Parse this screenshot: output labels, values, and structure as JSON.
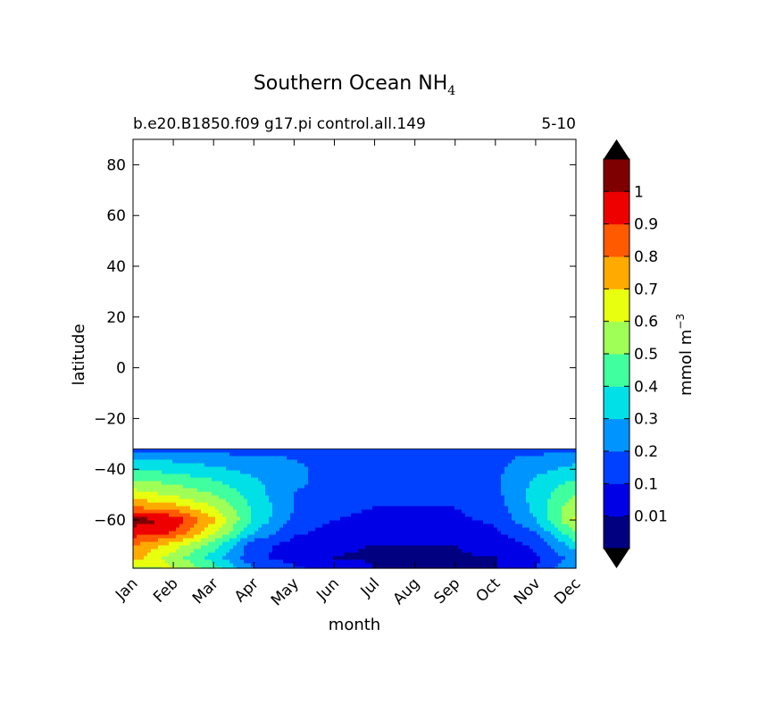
{
  "chart_data": {
    "type": "contour",
    "title": "Southern Ocean NH",
    "title_subscript": "4",
    "subtitle_left": "b.e20.B1850.f09 g17.pi control.all.149",
    "subtitle_right": "5-10",
    "xlabel": "month",
    "ylabel": "latitude",
    "x_ticks": [
      "Jan",
      "Feb",
      "Mar",
      "Apr",
      "May",
      "Jun",
      "Jul",
      "Aug",
      "Sep",
      "Oct",
      "Nov",
      "Dec"
    ],
    "y_ticks": [
      80,
      60,
      40,
      20,
      0,
      -20,
      -40,
      -60
    ],
    "ylim": [
      -79,
      90
    ],
    "data_lat_range": [
      -79,
      -32
    ],
    "colorbar": {
      "label": "mmol m",
      "label_superscript": "−3",
      "levels": [
        0.01,
        0.1,
        0.2,
        0.3,
        0.4,
        0.5,
        0.6,
        0.7,
        0.8,
        0.9,
        1
      ],
      "level_labels": [
        "0.01",
        "0.1",
        "0.2",
        "0.3",
        "0.4",
        "0.5",
        "0.6",
        "0.7",
        "0.8",
        "0.9",
        "1"
      ],
      "colors": [
        "#000080",
        "#0000e6",
        "#0040ff",
        "#0094ff",
        "#00e0e6",
        "#40ff9f",
        "#a0ff56",
        "#e8ff10",
        "#ffaa00",
        "#ff5a00",
        "#ee0000",
        "#7f0000"
      ],
      "extend": "both",
      "extend_color": "#000000"
    },
    "field_description": {
      "lat_grid": [
        -79,
        -75,
        -70,
        -65,
        -60,
        -55,
        -50,
        -45,
        -40,
        -35,
        -32
      ],
      "month_index": [
        0,
        1,
        2,
        3,
        4,
        5,
        6,
        7,
        8,
        9,
        10,
        11
      ],
      "values": [
        [
          0.55,
          0.62,
          0.45,
          0.2,
          0.12,
          0.06,
          0.008,
          0.008,
          0.008,
          0.008,
          0.1,
          0.3
        ],
        [
          0.75,
          0.55,
          0.35,
          0.12,
          0.06,
          0.008,
          0.005,
          0.005,
          0.005,
          0.005,
          0.08,
          0.25
        ],
        [
          0.8,
          0.65,
          0.45,
          0.14,
          0.06,
          0.02,
          0.008,
          0.008,
          0.008,
          0.04,
          0.12,
          0.35
        ],
        [
          0.95,
          0.9,
          0.62,
          0.3,
          0.12,
          0.06,
          0.04,
          0.03,
          0.04,
          0.08,
          0.2,
          0.5
        ],
        [
          1.05,
          0.98,
          0.72,
          0.38,
          0.18,
          0.1,
          0.08,
          0.08,
          0.08,
          0.12,
          0.3,
          0.62
        ],
        [
          0.8,
          0.75,
          0.6,
          0.38,
          0.2,
          0.12,
          0.1,
          0.1,
          0.1,
          0.15,
          0.33,
          0.58
        ],
        [
          0.65,
          0.58,
          0.5,
          0.35,
          0.2,
          0.14,
          0.12,
          0.12,
          0.12,
          0.17,
          0.34,
          0.5
        ],
        [
          0.52,
          0.48,
          0.42,
          0.32,
          0.22,
          0.16,
          0.14,
          0.14,
          0.14,
          0.18,
          0.32,
          0.42
        ],
        [
          0.4,
          0.36,
          0.32,
          0.26,
          0.22,
          0.17,
          0.15,
          0.15,
          0.15,
          0.18,
          0.27,
          0.33
        ],
        [
          0.28,
          0.26,
          0.24,
          0.22,
          0.19,
          0.16,
          0.15,
          0.15,
          0.15,
          0.17,
          0.22,
          0.26
        ],
        [
          0.14,
          0.13,
          0.13,
          0.12,
          0.12,
          0.11,
          0.11,
          0.11,
          0.11,
          0.12,
          0.13,
          0.14
        ]
      ]
    }
  }
}
